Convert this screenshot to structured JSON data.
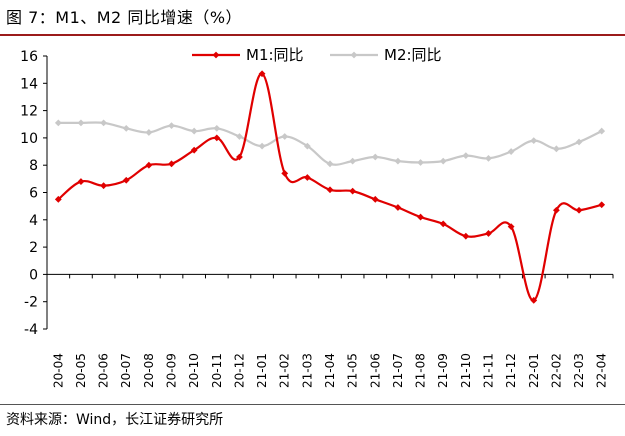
{
  "figure": {
    "title": "图 7：M1、M2 同比增速（%）",
    "source": "资料来源：Wind，长江证券研究所"
  },
  "chart_data": {
    "type": "line",
    "categories": [
      "20-04",
      "20-05",
      "20-06",
      "20-07",
      "20-08",
      "20-09",
      "20-10",
      "20-11",
      "20-12",
      "21-01",
      "21-02",
      "21-03",
      "21-04",
      "21-05",
      "21-06",
      "21-07",
      "21-08",
      "21-09",
      "21-10",
      "21-11",
      "21-12",
      "22-01",
      "22-02",
      "22-03",
      "22-04"
    ],
    "series": [
      {
        "name": "M1:同比",
        "color": "#e00000",
        "values": [
          5.5,
          6.8,
          6.5,
          6.9,
          8.0,
          8.1,
          9.1,
          10.0,
          8.6,
          14.7,
          7.4,
          7.1,
          6.2,
          6.1,
          5.5,
          4.9,
          4.2,
          3.7,
          2.8,
          3.0,
          3.5,
          -1.9,
          4.7,
          4.7,
          5.1
        ]
      },
      {
        "name": "M2:同比",
        "color": "#c8c8c8",
        "values": [
          11.1,
          11.1,
          11.1,
          10.7,
          10.4,
          10.9,
          10.5,
          10.7,
          10.1,
          9.4,
          10.1,
          9.4,
          8.1,
          8.3,
          8.6,
          8.3,
          8.2,
          8.3,
          8.7,
          8.5,
          9.0,
          9.8,
          9.2,
          9.7,
          10.5
        ]
      }
    ],
    "title": "M1、M2 同比增速（%）",
    "xlabel": "",
    "ylabel": "",
    "ylim": [
      -4,
      16
    ],
    "yticks": [
      -4,
      -2,
      0,
      2,
      4,
      6,
      8,
      10,
      12,
      14,
      16
    ],
    "grid": false,
    "legend": "top-center"
  }
}
